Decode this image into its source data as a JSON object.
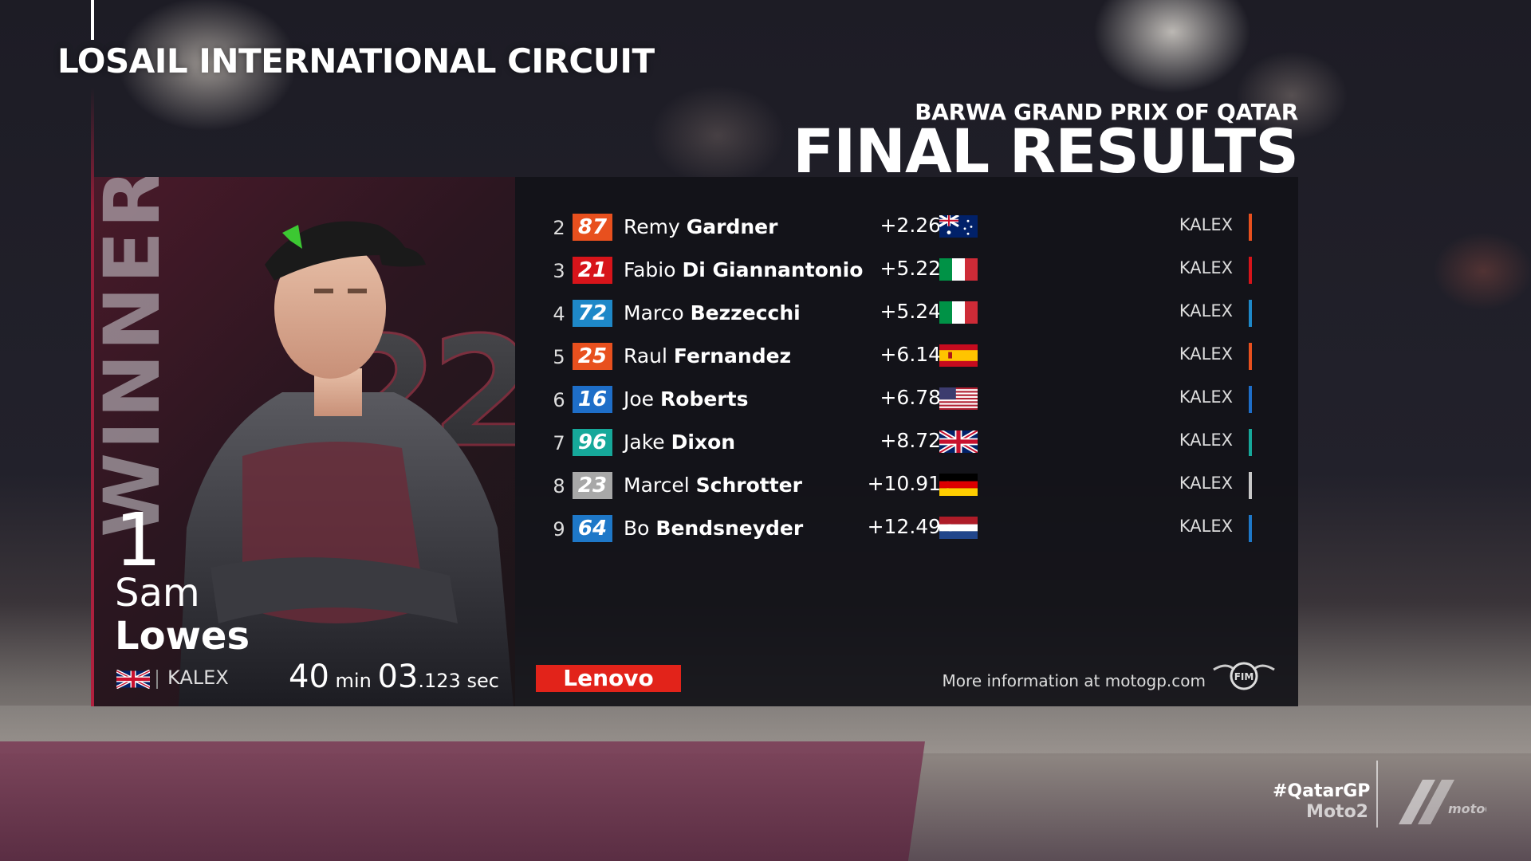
{
  "header": {
    "circuit": "LOSAIL INTERNATIONAL CIRCUIT",
    "event": "BARWA GRAND PRIX OF QATAR",
    "title": "FINAL RESULTS"
  },
  "winner": {
    "label": "WINNER",
    "bike_number": "22",
    "position": "1",
    "first_name": "Sam",
    "last_name": "Lowes",
    "flag": "uk-flag-icon",
    "team": "KALEX",
    "time_min": "40",
    "min_unit": "min",
    "time_sec": "03",
    "time_ms": ".123",
    "sec_unit": "sec"
  },
  "results": [
    {
      "pos": "2",
      "number": "87",
      "badge_color": "#e8501e",
      "first": "Remy",
      "last": "Gardner",
      "gap": "+2.260",
      "flag": "australia-flag-icon",
      "team": "KALEX",
      "bar_color": "#e8501e"
    },
    {
      "pos": "3",
      "number": "21",
      "badge_color": "#d7141a",
      "first": "Fabio",
      "last": "Di Giannantonio",
      "gap": "+5.228",
      "flag": "italy-flag-icon",
      "team": "KALEX",
      "bar_color": "#d7141a"
    },
    {
      "pos": "4",
      "number": "72",
      "badge_color": "#1e88c8",
      "first": "Marco",
      "last": "Bezzecchi",
      "gap": "+5.241",
      "flag": "italy-flag-icon",
      "team": "KALEX",
      "bar_color": "#1e88c8"
    },
    {
      "pos": "5",
      "number": "25",
      "badge_color": "#e8501e",
      "first": "Raul",
      "last": "Fernandez",
      "gap": "+6.145",
      "flag": "spain-flag-icon",
      "team": "KALEX",
      "bar_color": "#e8501e"
    },
    {
      "pos": "6",
      "number": "16",
      "badge_color": "#1e6ec8",
      "first": "Joe",
      "last": "Roberts",
      "gap": "+6.786",
      "flag": "usa-flag-icon",
      "team": "KALEX",
      "bar_color": "#1e6ec8"
    },
    {
      "pos": "7",
      "number": "96",
      "badge_color": "#16a89a",
      "first": "Jake",
      "last": "Dixon",
      "gap": "+8.721",
      "flag": "uk-flag-icon",
      "team": "KALEX",
      "bar_color": "#16a89a"
    },
    {
      "pos": "8",
      "number": "23",
      "badge_color": "#a8a8a8",
      "first": "Marcel",
      "last": "Schrotter",
      "gap": "+10.911",
      "flag": "germany-flag-icon",
      "team": "KALEX",
      "bar_color": "#c8c8c8"
    },
    {
      "pos": "9",
      "number": "64",
      "badge_color": "#1e78c8",
      "first": "Bo",
      "last": "Bendsneyder",
      "gap": "+12.493",
      "flag": "netherlands-flag-icon",
      "team": "KALEX",
      "bar_color": "#1e78c8"
    }
  ],
  "footer": {
    "sponsor": "Lenovo",
    "more_info": "More information at motogp.com",
    "fim_logo": "fim-logo-icon"
  },
  "corner": {
    "hashtag": "#QatarGP",
    "class": "Moto2",
    "logo": "motogp-logo-icon"
  }
}
